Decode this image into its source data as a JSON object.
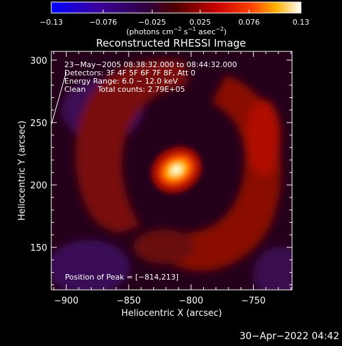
{
  "chart_data": {
    "type": "heatmap",
    "title": "Reconstructed RHESSI Image",
    "xlabel": "Heliocentric X (arcsec)",
    "ylabel": "Heliocentric Y (arcsec)",
    "xlim": [
      -912,
      -719
    ],
    "ylim": [
      116,
      307
    ],
    "x_ticks": [
      -900,
      -850,
      -800,
      -750
    ],
    "x_tick_labels": [
      "−900",
      "−850",
      "−800",
      "−750"
    ],
    "y_ticks": [
      150,
      200,
      250,
      300
    ],
    "y_tick_labels": [
      "150",
      "200",
      "250",
      "300"
    ],
    "colorbar": {
      "min": -0.13,
      "max": 0.13,
      "ticks": [
        -0.13,
        -0.076,
        -0.025,
        0.025,
        0.076,
        0.13
      ],
      "tick_labels": [
        "−0.13",
        "−0.076",
        "−0.025",
        "0.025",
        "0.076",
        "0.13"
      ],
      "units_prefix": "(photons cm",
      "units_exp1": "−2",
      "units_mid": " s",
      "units_exp2": "−1",
      "units_mid2": " asec",
      "units_exp3": "−2",
      "units_suffix": ")"
    },
    "annotations": [
      "23−May−2005 08:38:32.000 to 08:44:32.000",
      "Detectors: 3F 4F 5F 6F 7F 8F, Att 0",
      "Energy Range: 6.0 − 12.0 keV",
      "Clean     Total counts: 2.79E+05"
    ],
    "peak_label": "Position of Peak = [−814,213]",
    "peak": [
      -814,
      213
    ],
    "timestamp": "30−Apr−2022 04:42"
  }
}
